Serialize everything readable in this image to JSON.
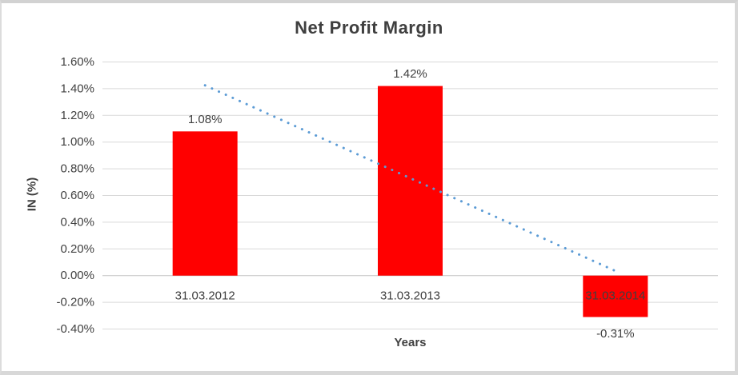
{
  "chart_data": {
    "type": "bar",
    "title": "Net Profit Margin",
    "xlabel": "Years",
    "ylabel": "IN (%)",
    "categories": [
      "31.03.2012",
      "31.03.2013",
      "31.03.2014"
    ],
    "values": [
      1.08,
      1.42,
      -0.31
    ],
    "data_labels": [
      "1.08%",
      "1.42%",
      "-0.31%"
    ],
    "y_ticks": [
      {
        "value": 1.6,
        "label": "1.60%"
      },
      {
        "value": 1.4,
        "label": "1.40%"
      },
      {
        "value": 1.2,
        "label": "1.20%"
      },
      {
        "value": 1.0,
        "label": "1.00%"
      },
      {
        "value": 0.8,
        "label": "0.80%"
      },
      {
        "value": 0.6,
        "label": "0.60%"
      },
      {
        "value": 0.4,
        "label": "0.40%"
      },
      {
        "value": 0.2,
        "label": "0.20%"
      },
      {
        "value": 0.0,
        "label": "0.00%"
      },
      {
        "value": -0.2,
        "label": "-0.20%"
      },
      {
        "value": -0.4,
        "label": "-0.40%"
      }
    ],
    "ylim": [
      -0.4,
      1.6
    ],
    "grid": true,
    "legend": "none",
    "bar_color": "#FF0000",
    "trendline": {
      "type": "linear",
      "style": "dotted",
      "color": "#5B9BD5",
      "start_value": 1.425,
      "end_value": 0.035
    }
  },
  "styles": {
    "text_color": "#404040",
    "title_color": "#3F3F3F",
    "gridline_color": "#D9D9D9",
    "axis_line_color": "#C3C3C3",
    "frame_border_color": "#D8D8D8",
    "background": "#FFFFFF"
  }
}
